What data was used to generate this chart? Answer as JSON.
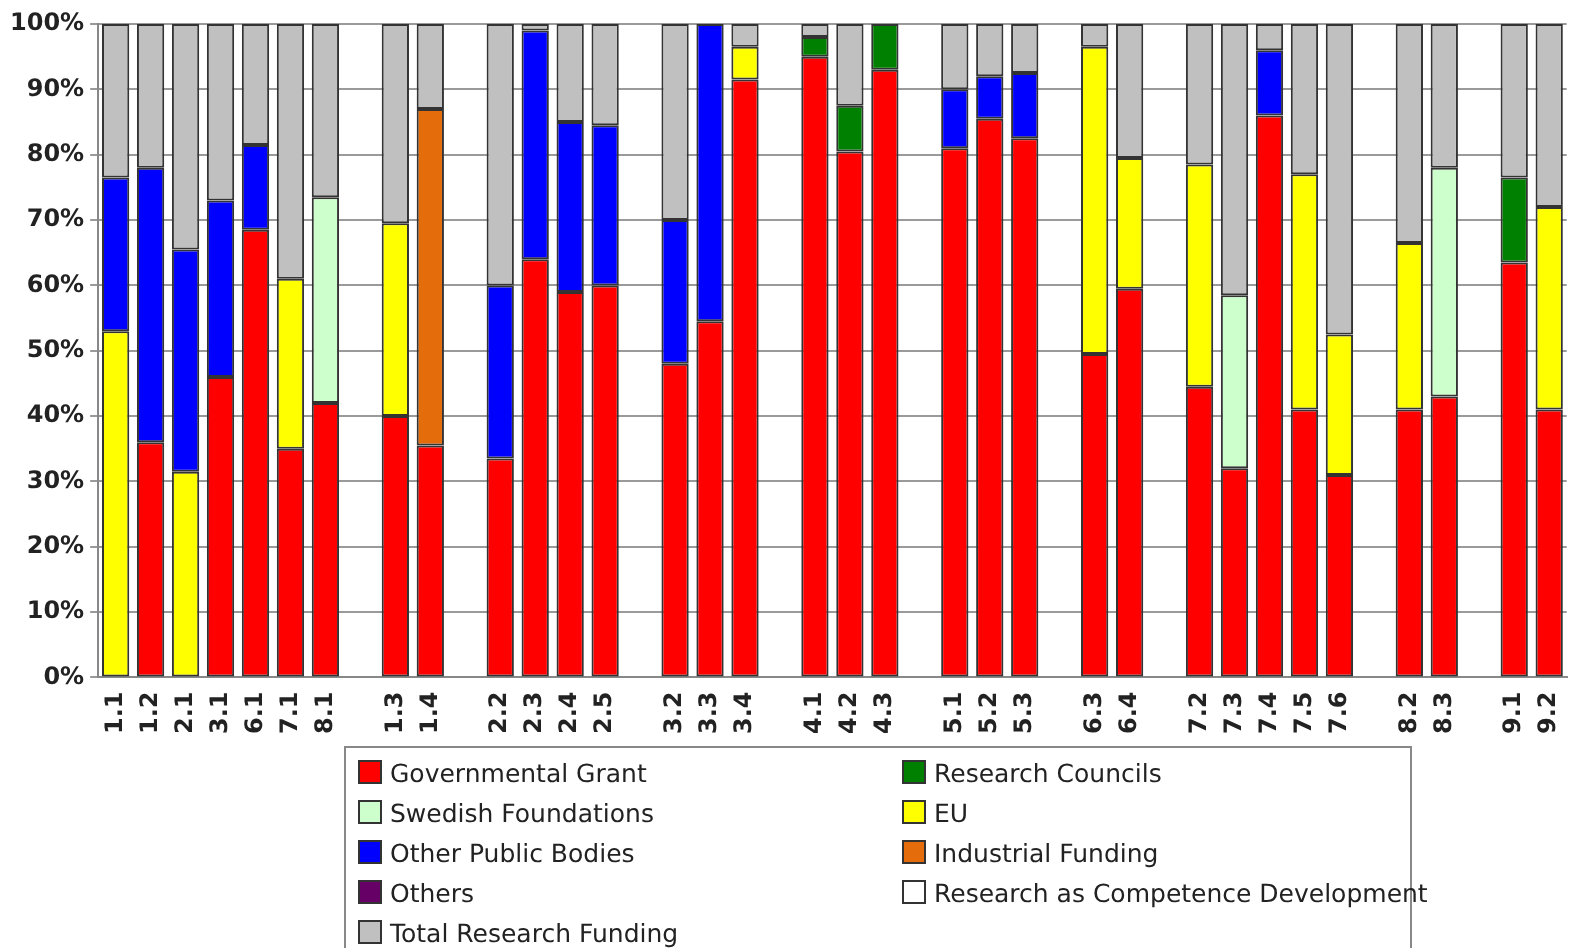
{
  "chart_data": {
    "type": "bar",
    "stacked": true,
    "categories": [
      "1.1",
      "1.2",
      "2.1",
      "3.1",
      "6.1",
      "7.1",
      "8.1",
      null,
      "1.3",
      "1.4",
      null,
      "2.2",
      "2.3",
      "2.4",
      "2.5",
      null,
      "3.2",
      "3.3",
      "3.4",
      null,
      "4.1",
      "4.2",
      "4.3",
      null,
      "5.1",
      "5.2",
      "5.3",
      null,
      "6.3",
      "6.4",
      null,
      "7.2",
      "7.3",
      "7.4",
      "7.5",
      "7.6",
      null,
      "8.2",
      "8.3",
      null,
      "9.1",
      "9.2"
    ],
    "series": [
      {
        "name": "Governmental Grant",
        "color": "#ff0000",
        "values": [
          0,
          36,
          0,
          46,
          68.5,
          35,
          42,
          null,
          40,
          35.5,
          null,
          33.5,
          64,
          59,
          60,
          null,
          48,
          54.5,
          91.5,
          null,
          95,
          80.5,
          93,
          null,
          81,
          85.5,
          82.5,
          null,
          49.5,
          59.5,
          null,
          44.5,
          32,
          86,
          41,
          31,
          null,
          41,
          43,
          null,
          63.5,
          41
        ]
      },
      {
        "name": "Research Councils",
        "color": "#008000",
        "values": [
          0,
          0,
          0,
          0,
          0,
          0,
          0,
          null,
          0,
          0,
          null,
          0,
          0,
          0,
          0,
          null,
          0,
          0,
          0,
          null,
          3,
          7,
          7,
          null,
          0,
          0,
          0,
          null,
          0,
          0,
          null,
          0,
          0,
          0,
          0,
          0,
          null,
          0,
          0,
          null,
          13,
          0
        ]
      },
      {
        "name": "Swedish Foundations",
        "color": "#ccffcc",
        "values": [
          0,
          0,
          0,
          0,
          0,
          0,
          31.5,
          null,
          0,
          0,
          null,
          0,
          0,
          0,
          0,
          null,
          0,
          0,
          0,
          null,
          0,
          0,
          0,
          null,
          0,
          0,
          0,
          null,
          0,
          0,
          null,
          0,
          26.5,
          0,
          0,
          0,
          null,
          0,
          35,
          null,
          0,
          0
        ]
      },
      {
        "name": "EU",
        "color": "#ffff00",
        "values": [
          53,
          0,
          31.5,
          0,
          0,
          26,
          0,
          null,
          29.5,
          0,
          null,
          0,
          0,
          0,
          0,
          null,
          0,
          0,
          5,
          null,
          0,
          0,
          0,
          null,
          0,
          0,
          0,
          null,
          47,
          20,
          null,
          34,
          0,
          0,
          36,
          21.5,
          null,
          25.5,
          0,
          null,
          0,
          31
        ]
      },
      {
        "name": "Other Public Bodies",
        "color": "#0000ff",
        "values": [
          23.5,
          42,
          34,
          27,
          13,
          0,
          0,
          null,
          0,
          0,
          null,
          26.5,
          35,
          26,
          24.5,
          null,
          22,
          45.5,
          0,
          null,
          0,
          0,
          0,
          null,
          9,
          6.5,
          10,
          null,
          0,
          0,
          null,
          0,
          0,
          10,
          0,
          0,
          null,
          0,
          0,
          null,
          0,
          0
        ]
      },
      {
        "name": "Industrial Funding",
        "color": "#e46c0a",
        "values": [
          0,
          0,
          0,
          0,
          0,
          0,
          0,
          null,
          0,
          51.5,
          null,
          0,
          0,
          0,
          0,
          null,
          0,
          0,
          0,
          null,
          0,
          0,
          0,
          null,
          0,
          0,
          0,
          null,
          0,
          0,
          null,
          0,
          0,
          0,
          0,
          0,
          null,
          0,
          0,
          null,
          0,
          0
        ]
      },
      {
        "name": "Others",
        "color": "#660066",
        "values": [
          0,
          0,
          0,
          0,
          0,
          0,
          0,
          null,
          0,
          0,
          null,
          0,
          0,
          0,
          0,
          null,
          0,
          0,
          0,
          null,
          0,
          0,
          0,
          null,
          0,
          0,
          0,
          null,
          0,
          0,
          null,
          0,
          0,
          0,
          0,
          0,
          null,
          0,
          0,
          null,
          0,
          0
        ]
      },
      {
        "name": "Research as Competence Development",
        "color": "#ffffff",
        "values": [
          0,
          0,
          0,
          0,
          0,
          0,
          0,
          null,
          0,
          0,
          null,
          0,
          0,
          0,
          0,
          null,
          0,
          0,
          0,
          null,
          0,
          0,
          0,
          null,
          0,
          0,
          0,
          null,
          0,
          0,
          null,
          0,
          0,
          0,
          0,
          0,
          null,
          0,
          0,
          null,
          0,
          0
        ]
      },
      {
        "name": "Total Research Funding",
        "color": "#c0c0c0",
        "values": [
          23.5,
          22,
          34.5,
          27,
          18.5,
          39,
          26.5,
          null,
          30.5,
          13,
          null,
          40,
          1,
          15,
          15.5,
          null,
          30,
          0,
          3.5,
          null,
          2,
          12.5,
          0,
          null,
          10,
          8,
          7.5,
          null,
          3.5,
          20.5,
          null,
          21.5,
          41.5,
          4,
          23,
          47.5,
          null,
          33.5,
          22,
          null,
          23.5,
          28
        ]
      }
    ],
    "ylim": [
      0,
      100
    ],
    "yticks": [
      {
        "value": 0,
        "label": "0%"
      },
      {
        "value": 10,
        "label": "10%"
      },
      {
        "value": 20,
        "label": "20%"
      },
      {
        "value": 30,
        "label": "30%"
      },
      {
        "value": 40,
        "label": "40%"
      },
      {
        "value": 50,
        "label": "50%"
      },
      {
        "value": 60,
        "label": "60%"
      },
      {
        "value": 70,
        "label": "70%"
      },
      {
        "value": 80,
        "label": "80%"
      },
      {
        "value": 90,
        "label": "90%"
      },
      {
        "value": 100,
        "label": "100%"
      }
    ],
    "grid": "y",
    "legend": "bottom"
  }
}
